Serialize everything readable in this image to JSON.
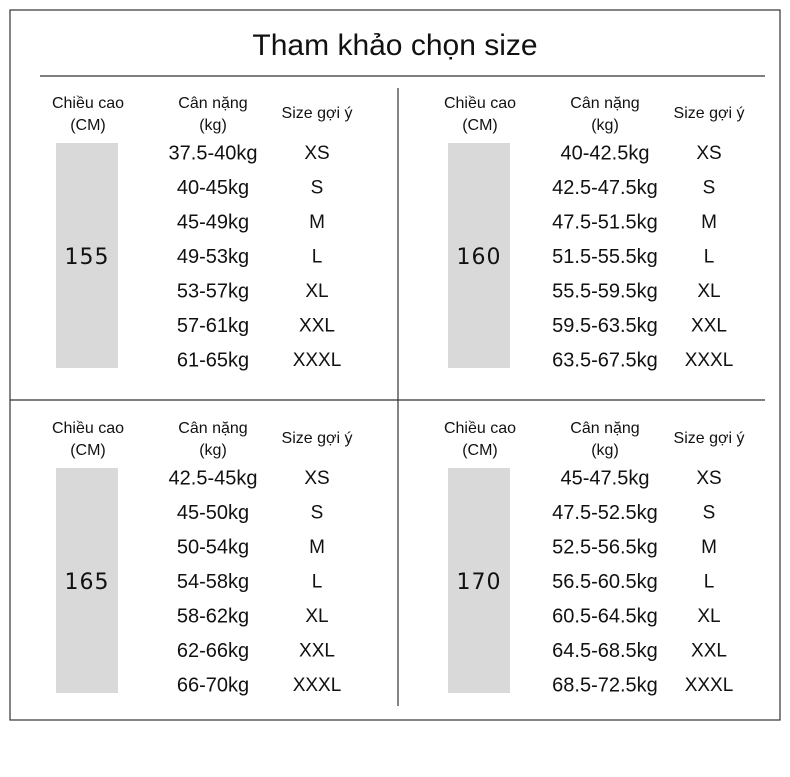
{
  "title": "Tham khảo chọn size",
  "panels": [
    {
      "height_header": [
        "Chiều cao",
        "(CM)"
      ],
      "weight_header": [
        "Cân nặng",
        "(kg)"
      ],
      "size_header": "Size gợi ý",
      "height": "155",
      "rows": [
        [
          "37.5-40kg",
          "XS"
        ],
        [
          "40-45kg",
          "S"
        ],
        [
          "45-49kg",
          "M"
        ],
        [
          "49-53kg",
          "L"
        ],
        [
          "53-57kg",
          "XL"
        ],
        [
          "57-61kg",
          "XXL"
        ],
        [
          "61-65kg",
          "XXXL"
        ]
      ]
    },
    {
      "height_header": [
        "Chiều cao",
        "(CM)"
      ],
      "weight_header": [
        "Cân nặng",
        "(kg)"
      ],
      "size_header": "Size gợi ý",
      "height": "160",
      "rows": [
        [
          "40-42.5kg",
          "XS"
        ],
        [
          "42.5-47.5kg",
          "S"
        ],
        [
          "47.5-51.5kg",
          "M"
        ],
        [
          "51.5-55.5kg",
          "L"
        ],
        [
          "55.5-59.5kg",
          "XL"
        ],
        [
          "59.5-63.5kg",
          "XXL"
        ],
        [
          "63.5-67.5kg",
          "XXXL"
        ]
      ]
    },
    {
      "height_header": [
        "Chiều cao",
        "(CM)"
      ],
      "weight_header": [
        "Cân nặng",
        "(kg)"
      ],
      "size_header": "Size gợi ý",
      "height": "165",
      "rows": [
        [
          "42.5-45kg",
          "XS"
        ],
        [
          "45-50kg",
          "S"
        ],
        [
          "50-54kg",
          "M"
        ],
        [
          "54-58kg",
          "L"
        ],
        [
          "58-62kg",
          "XL"
        ],
        [
          "62-66kg",
          "XXL"
        ],
        [
          "66-70kg",
          "XXXL"
        ]
      ]
    },
    {
      "height_header": [
        "Chiều cao",
        "(CM)"
      ],
      "weight_header": [
        "Cân nặng",
        "(kg)"
      ],
      "size_header": "Size gợi ý",
      "height": "170",
      "rows": [
        [
          "45-47.5kg",
          "XS"
        ],
        [
          "47.5-52.5kg",
          "S"
        ],
        [
          "52.5-56.5kg",
          "M"
        ],
        [
          "56.5-60.5kg",
          "L"
        ],
        [
          "60.5-64.5kg",
          "XL"
        ],
        [
          "64.5-68.5kg",
          "XXL"
        ],
        [
          "68.5-72.5kg",
          "XXXL"
        ]
      ]
    }
  ]
}
